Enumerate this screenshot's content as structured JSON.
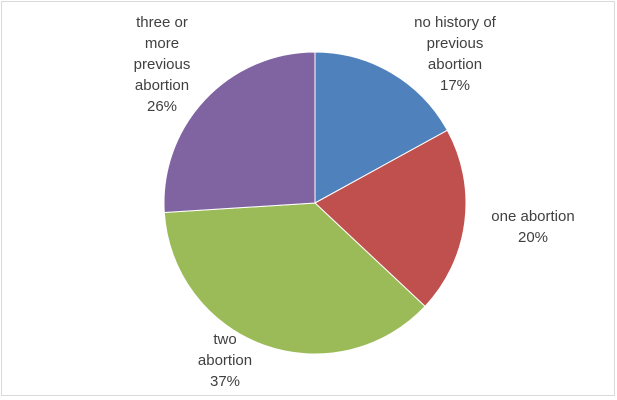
{
  "chart_data": {
    "type": "pie",
    "title": "",
    "slices": [
      {
        "label_lines": [
          "no history of",
          "previous",
          "abortion"
        ],
        "percent_label": "17%",
        "value": 17,
        "color": "#4f81bd"
      },
      {
        "label_lines": [
          "one abortion"
        ],
        "percent_label": "20%",
        "value": 20,
        "color": "#c0504d"
      },
      {
        "label_lines": [
          "two",
          "abortion"
        ],
        "percent_label": "37%",
        "value": 37,
        "color": "#9bbb59"
      },
      {
        "label_lines": [
          "three or",
          "more",
          "previous",
          "abortion"
        ],
        "percent_label": "26%",
        "value": 26,
        "color": "#8064a2"
      }
    ],
    "legend": "none",
    "start_angle_deg": 0,
    "direction": "clockwise"
  }
}
